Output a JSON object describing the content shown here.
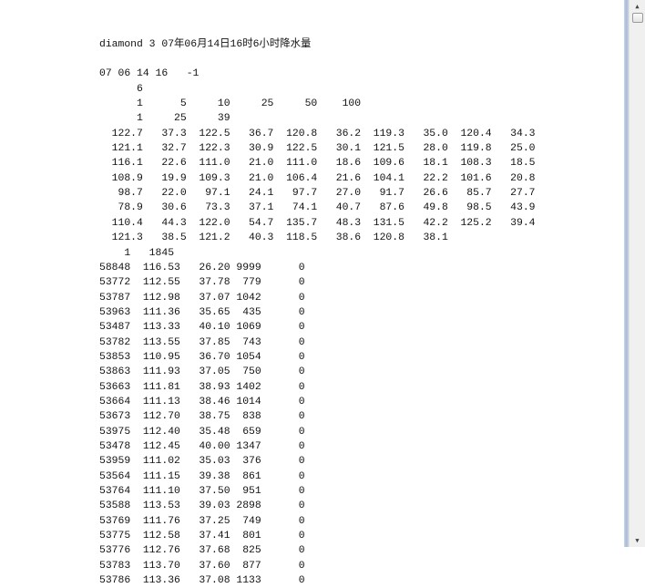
{
  "document": {
    "title_line": "diamond 3 07年06月14日16时6小时降水量",
    "date_line": [
      "07",
      "06",
      "14",
      "16",
      "-1"
    ],
    "contour_count": "6",
    "contour_levels": [
      "1",
      "5",
      "10",
      "25",
      "50",
      "100"
    ],
    "line_params": [
      "1",
      "25",
      "39"
    ],
    "boundary_values": [
      [
        "122.7",
        "37.3",
        "122.5",
        "36.7",
        "120.8",
        "36.2",
        "119.3",
        "35.0",
        "120.4",
        "34.3"
      ],
      [
        "121.1",
        "32.7",
        "122.3",
        "30.9",
        "122.5",
        "30.1",
        "121.5",
        "28.0",
        "119.8",
        "25.0"
      ],
      [
        "116.1",
        "22.6",
        "111.0",
        "21.0",
        "111.0",
        "18.6",
        "109.6",
        "18.1",
        "108.3",
        "18.5"
      ],
      [
        "108.9",
        "19.9",
        "109.3",
        "21.0",
        "106.4",
        "21.6",
        "104.1",
        "22.2",
        "101.6",
        "20.8"
      ],
      [
        "98.7",
        "22.0",
        "97.1",
        "24.1",
        "97.7",
        "27.0",
        "91.7",
        "26.6",
        "85.7",
        "27.7"
      ],
      [
        "78.9",
        "30.6",
        "73.3",
        "37.1",
        "74.1",
        "40.7",
        "87.6",
        "49.8",
        "98.5",
        "43.9"
      ],
      [
        "110.4",
        "44.3",
        "122.0",
        "54.7",
        "135.7",
        "48.3",
        "131.5",
        "42.2",
        "125.2",
        "39.4"
      ],
      [
        "121.3",
        "38.5",
        "121.2",
        "40.3",
        "118.5",
        "38.6",
        "120.8",
        "38.1"
      ]
    ],
    "station_header": [
      "1",
      "1845"
    ],
    "stations": [
      [
        "58848",
        "116.53",
        "26.20",
        "9999",
        "0"
      ],
      [
        "53772",
        "112.55",
        "37.78",
        "779",
        "0"
      ],
      [
        "53787",
        "112.98",
        "37.07",
        "1042",
        "0"
      ],
      [
        "53963",
        "111.36",
        "35.65",
        "435",
        "0"
      ],
      [
        "53487",
        "113.33",
        "40.10",
        "1069",
        "0"
      ],
      [
        "53782",
        "113.55",
        "37.85",
        "743",
        "0"
      ],
      [
        "53853",
        "110.95",
        "36.70",
        "1054",
        "0"
      ],
      [
        "53863",
        "111.93",
        "37.05",
        "750",
        "0"
      ],
      [
        "53663",
        "111.81",
        "38.93",
        "1402",
        "0"
      ],
      [
        "53664",
        "111.13",
        "38.46",
        "1014",
        "0"
      ],
      [
        "53673",
        "112.70",
        "38.75",
        "838",
        "0"
      ],
      [
        "53975",
        "112.40",
        "35.48",
        "659",
        "0"
      ],
      [
        "53478",
        "112.45",
        "40.00",
        "1347",
        "0"
      ],
      [
        "53959",
        "111.02",
        "35.03",
        "376",
        "0"
      ],
      [
        "53564",
        "111.15",
        "39.38",
        "861",
        "0"
      ],
      [
        "53764",
        "111.10",
        "37.50",
        "951",
        "0"
      ],
      [
        "53588",
        "113.53",
        "39.03",
        "2898",
        "0"
      ],
      [
        "53769",
        "111.76",
        "37.25",
        "749",
        "0"
      ],
      [
        "53775",
        "112.58",
        "37.41",
        "801",
        "0"
      ],
      [
        "53776",
        "112.76",
        "37.68",
        "825",
        "0"
      ],
      [
        "53783",
        "113.70",
        "37.60",
        "877",
        "0"
      ],
      [
        "53786",
        "113.36",
        "37.08",
        "1133",
        "0"
      ]
    ]
  },
  "scrollbar": {
    "position_percent": 0,
    "up_icon": "arrow-up-icon",
    "down_icon": "arrow-down-icon"
  }
}
